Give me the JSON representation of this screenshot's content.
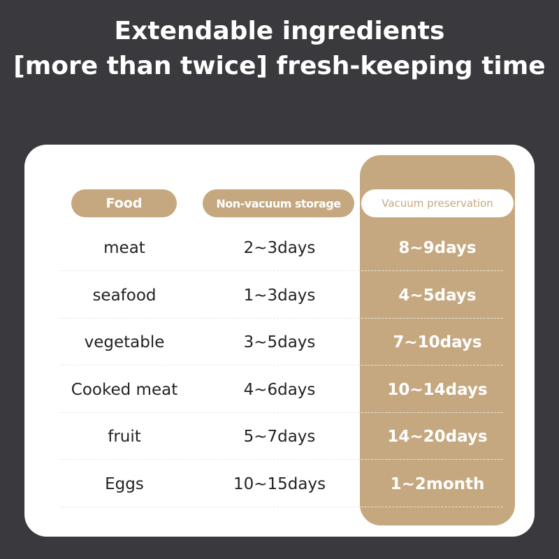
{
  "title": {
    "line1": "Extendable ingredients",
    "line2": "[more than twice] fresh-keeping time"
  },
  "colors": {
    "background": "#3a3a3e",
    "accent": "#c6a880",
    "card": "#ffffff"
  },
  "table": {
    "headers": [
      "Food",
      "Non-vacuum storage",
      "Vacuum preservation"
    ],
    "rows": [
      {
        "food": "meat",
        "non_vacuum": "2~3days",
        "vacuum": "8~9days"
      },
      {
        "food": "seafood",
        "non_vacuum": "1~3days",
        "vacuum": "4~5days"
      },
      {
        "food": "vegetable",
        "non_vacuum": "3~5days",
        "vacuum": "7~10days"
      },
      {
        "food": "Cooked meat",
        "non_vacuum": "4~6days",
        "vacuum": "10~14days"
      },
      {
        "food": "fruit",
        "non_vacuum": "5~7days",
        "vacuum": "14~20days"
      },
      {
        "food": "Eggs",
        "non_vacuum": "10~15days",
        "vacuum": "1~2month"
      }
    ]
  }
}
